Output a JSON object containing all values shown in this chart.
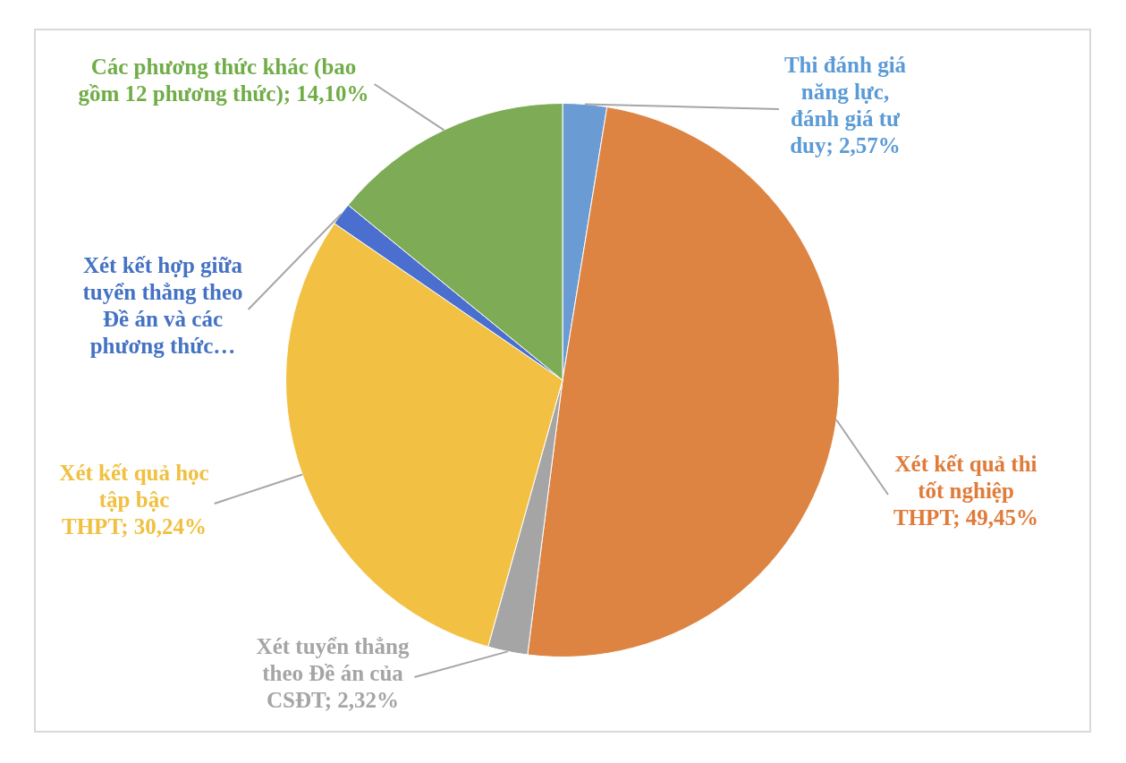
{
  "chart_data": {
    "type": "pie",
    "categories": [
      "Thi đánh giá năng lực, đánh giá tư duy",
      "Xét kết quả thi tốt nghiệp THPT",
      "Xét tuyển thẳng theo Đề án của CSĐT",
      "Xét kết quả học tập bậc THPT",
      "Xét kết hợp giữa tuyển thẳng theo Đề án và các phương thức…",
      "Các phương thức khác (bao gồm 12 phương thức)"
    ],
    "values": [
      2.57,
      49.45,
      2.32,
      30.24,
      1.32,
      14.1
    ],
    "value_labels": [
      "2,57%",
      "49,45%",
      "2,32%",
      "30,24%",
      null,
      "14,10%"
    ],
    "colors": [
      "#6a9bd3",
      "#dd8443",
      "#a5a5a5",
      "#f2c144",
      "#4a6fcf",
      "#7eab55"
    ],
    "legend": false
  }
}
